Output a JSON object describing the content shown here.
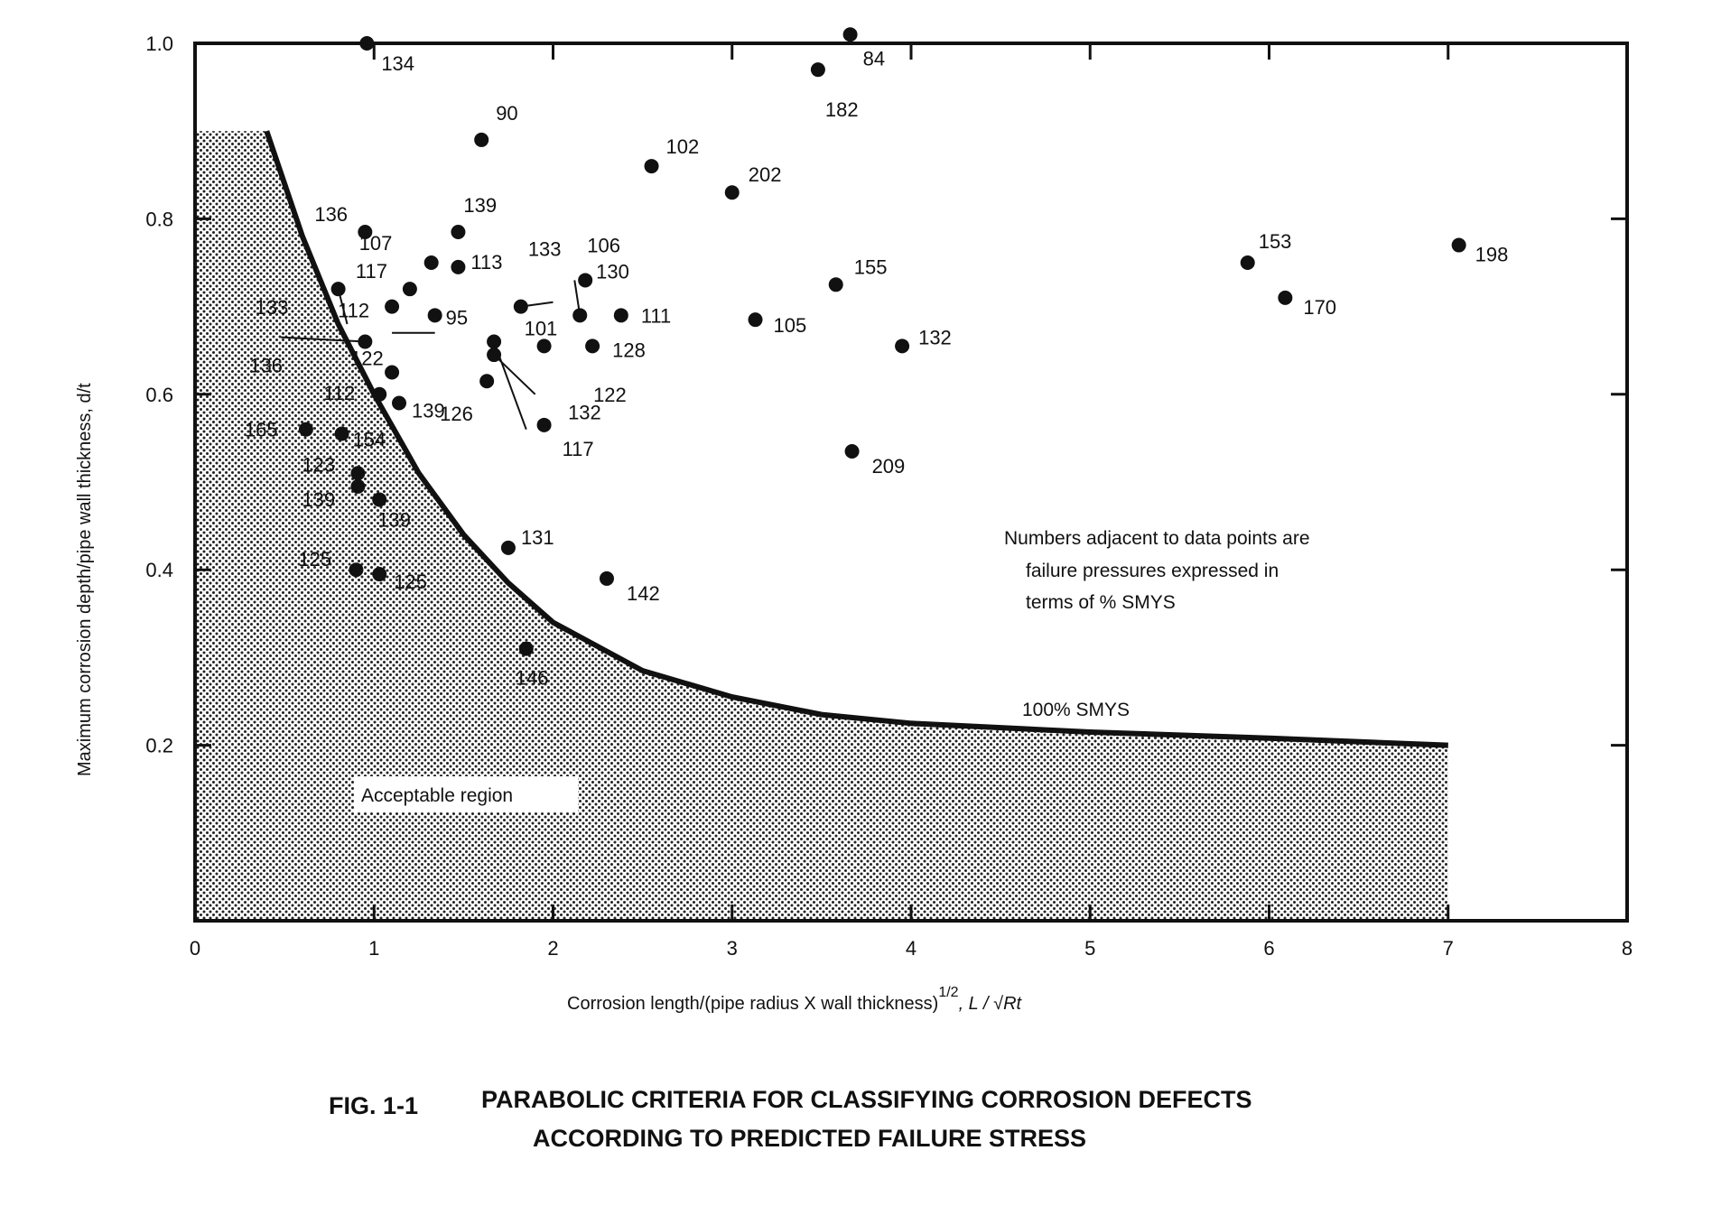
{
  "chart_data": {
    "type": "scatter",
    "title": "",
    "xlabel": "Corrosion length/(pipe radius X wall thickness)",
    "xlabel_power": "1/2",
    "xlabel_formula": ", L / √Rt",
    "ylabel": "Maximum corrosion depth/pipe wall thickness, d/t",
    "xlim": [
      0,
      8
    ],
    "ylim": [
      0,
      1.0
    ],
    "x_ticks": [
      "0",
      "1",
      "2",
      "3",
      "4",
      "5",
      "6",
      "7",
      "8"
    ],
    "y_ticks": [
      "0.2",
      "0.4",
      "0.6",
      "0.8",
      "1.0"
    ],
    "y_tick_values": [
      0.2,
      0.4,
      0.6,
      0.8,
      1.0
    ],
    "curve_label": "100% SMYS",
    "region_label": "Acceptable region",
    "note_lines": [
      "Numbers adjacent to data points are",
      "failure pressures expressed in",
      "terms of % SMYS"
    ],
    "curve": {
      "x": [
        0.4,
        0.5,
        0.6,
        0.8,
        1.0,
        1.25,
        1.5,
        1.75,
        2.0,
        2.5,
        3.0,
        3.5,
        4.0,
        5.0,
        6.0,
        7.0
      ],
      "y": [
        0.9,
        0.84,
        0.78,
        0.68,
        0.6,
        0.51,
        0.44,
        0.385,
        0.34,
        0.285,
        0.255,
        0.235,
        0.225,
        0.215,
        0.208,
        0.2
      ],
      "fill_to": 7.0
    },
    "points": [
      {
        "x": 0.96,
        "y": 1.0,
        "label": "134"
      },
      {
        "x": 3.66,
        "y": 1.01,
        "label": "84"
      },
      {
        "x": 3.48,
        "y": 0.97,
        "label": "182"
      },
      {
        "x": 1.6,
        "y": 0.89,
        "label": "90"
      },
      {
        "x": 2.55,
        "y": 0.86,
        "label": "102"
      },
      {
        "x": 3.0,
        "y": 0.83,
        "label": "202"
      },
      {
        "x": 0.95,
        "y": 0.785,
        "label": "136"
      },
      {
        "x": 1.47,
        "y": 0.785,
        "label": "139"
      },
      {
        "x": 1.32,
        "y": 0.75,
        "label": "107"
      },
      {
        "x": 1.47,
        "y": 0.745,
        "label": "113"
      },
      {
        "x": 1.2,
        "y": 0.72,
        "label": "117"
      },
      {
        "x": 0.8,
        "y": 0.72,
        "label": "133"
      },
      {
        "x": 1.82,
        "y": 0.7,
        "label": "133"
      },
      {
        "x": 2.18,
        "y": 0.73,
        "label": "130"
      },
      {
        "x": 2.15,
        "y": 0.69,
        "label": "106"
      },
      {
        "x": 2.38,
        "y": 0.69,
        "label": "111"
      },
      {
        "x": 1.1,
        "y": 0.7,
        "label": "112"
      },
      {
        "x": 1.34,
        "y": 0.69,
        "label": "95"
      },
      {
        "x": 0.95,
        "y": 0.66,
        "label": "136"
      },
      {
        "x": 1.95,
        "y": 0.655,
        "label": "101"
      },
      {
        "x": 2.22,
        "y": 0.655,
        "label": "128"
      },
      {
        "x": 3.13,
        "y": 0.685,
        "label": "105"
      },
      {
        "x": 3.58,
        "y": 0.725,
        "label": "155"
      },
      {
        "x": 3.95,
        "y": 0.655,
        "label": "132"
      },
      {
        "x": 5.88,
        "y": 0.75,
        "label": "153"
      },
      {
        "x": 6.09,
        "y": 0.71,
        "label": "170"
      },
      {
        "x": 7.06,
        "y": 0.77,
        "label": "198"
      },
      {
        "x": 1.67,
        "y": 0.645,
        "label": "122"
      },
      {
        "x": 1.67,
        "y": 0.66,
        "label": "132"
      },
      {
        "x": 1.1,
        "y": 0.625,
        "label": "122"
      },
      {
        "x": 1.63,
        "y": 0.615,
        "label": "126"
      },
      {
        "x": 1.03,
        "y": 0.6,
        "label": "112"
      },
      {
        "x": 1.14,
        "y": 0.59,
        "label": "139"
      },
      {
        "x": 1.95,
        "y": 0.565,
        "label": "117"
      },
      {
        "x": 0.62,
        "y": 0.56,
        "label": "165"
      },
      {
        "x": 0.82,
        "y": 0.555,
        "label": "154"
      },
      {
        "x": 3.67,
        "y": 0.535,
        "label": "209"
      },
      {
        "x": 0.91,
        "y": 0.51,
        "label": "123"
      },
      {
        "x": 0.91,
        "y": 0.495,
        "label": "139"
      },
      {
        "x": 1.03,
        "y": 0.48,
        "label": "139"
      },
      {
        "x": 1.75,
        "y": 0.425,
        "label": "131"
      },
      {
        "x": 0.9,
        "y": 0.4,
        "label": "125"
      },
      {
        "x": 1.03,
        "y": 0.395,
        "label": "125"
      },
      {
        "x": 2.3,
        "y": 0.39,
        "label": "142"
      },
      {
        "x": 1.85,
        "y": 0.31,
        "label": "146"
      }
    ],
    "grid": false,
    "legend": "none"
  },
  "figure": {
    "caption_number": "FIG. 1-1",
    "caption_line1": "PARABOLIC CRITERIA FOR CLASSIFYING CORROSION DEFECTS",
    "caption_line2": "ACCORDING TO PREDICTED FAILURE STRESS"
  },
  "colors": {
    "ink": "#111111",
    "background": "#ffffff"
  }
}
